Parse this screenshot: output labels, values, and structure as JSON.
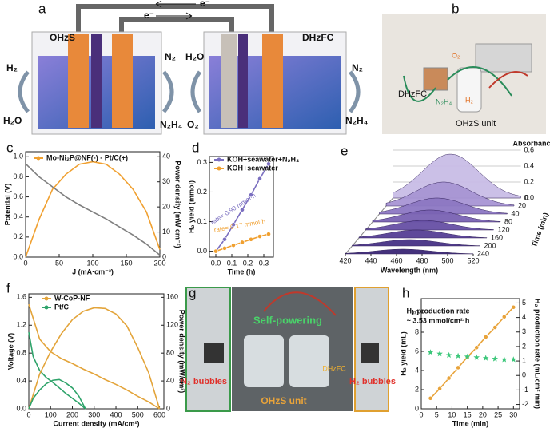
{
  "figure": {
    "panel_labels": [
      "a",
      "b",
      "c",
      "d",
      "e",
      "f",
      "g",
      "h"
    ],
    "a": {
      "left_cell": "OHzS",
      "right_cell": "DHzFC",
      "electron_top": "e⁻",
      "electron_bottom": "e⁻",
      "left_out": "H₂",
      "left_in": "H₂O",
      "left_gas": "N₂",
      "left_fuel": "N₂H₄",
      "right_water": "H₂O",
      "right_o2": "O₂",
      "right_gas": "N₂",
      "right_fuel": "N₂H₄"
    },
    "b": {
      "fuel_cell": "DHzFC",
      "o2": "O₂",
      "n2h4": "N₂H₄",
      "h2": "H₂",
      "unit": "OHzS unit"
    },
    "g": {
      "caption": "Self-powering",
      "n2": "N₂ bubbles",
      "h2": "H₂ bubbles",
      "unit": "OHzS unit",
      "fuel_cell": "DHzFC"
    }
  },
  "chart_data": [
    {
      "type": "line",
      "xlabel": "J (mA·cm⁻²)",
      "ylabel": "Potential (V)",
      "y2label": "Power density (mW cm⁻²)",
      "x": [
        0,
        20,
        40,
        60,
        80,
        100,
        120,
        140,
        160,
        180,
        200
      ],
      "xlim": [
        0,
        200
      ],
      "xticks": [
        0,
        50,
        100,
        150,
        200
      ],
      "ylim": [
        0,
        1.05
      ],
      "yticks": [
        {
          "value": 0,
          "label": "0.0"
        },
        0.2,
        0.4,
        0.6,
        0.8,
        {
          "value": 1,
          "label": "1.0"
        }
      ],
      "y2lim": [
        0,
        42
      ],
      "y2ticks": [
        0,
        10,
        20,
        30,
        40
      ],
      "series": [
        {
          "color": "#7f7f7f",
          "line": true,
          "marker": "none",
          "values": [
            0.93,
            0.8,
            0.7,
            0.6,
            0.52,
            0.45,
            0.38,
            0.3,
            0.22,
            0.13,
            0.02
          ]
        },
        {
          "name": "Mo-Ni₂P@NF(-) - Pt/C(+)",
          "color": "#f0a030",
          "axis": "y2",
          "line": true,
          "marker": "none",
          "values": [
            0,
            15,
            27,
            33,
            37,
            38,
            37,
            33,
            27,
            18,
            3
          ]
        }
      ]
    },
    {
      "type": "line",
      "xlabel": "Time (h)",
      "ylabel": "H₂ yield (mmol)",
      "x": [
        0,
        0.055,
        0.11,
        0.165,
        0.22,
        0.275,
        0.33
      ],
      "xlim": [
        -0.04,
        0.36
      ],
      "xticks": [
        {
          "value": 0,
          "label": "0.0"
        },
        0.1,
        0.2,
        0.3
      ],
      "ylim": [
        -0.02,
        0.32
      ],
      "yticks": [
        {
          "value": 0,
          "label": "0.0"
        },
        0.1,
        0.2,
        0.3
      ],
      "annotations": [
        "rate= 0.90 mmol·h",
        "rate= 0.17 mmol·h"
      ],
      "series": [
        {
          "name": "KOH+seawater+N₂H₄",
          "color": "#7b6fc0",
          "line": true,
          "marker": "circle",
          "values": [
            0,
            0.04,
            0.09,
            0.14,
            0.19,
            0.245,
            0.295
          ]
        },
        {
          "name": "KOH+seawater",
          "color": "#f0a030",
          "line": true,
          "marker": "circle",
          "values": [
            0,
            0.01,
            0.02,
            0.03,
            0.04,
            0.05,
            0.058
          ]
        }
      ]
    },
    {
      "type": "waterfall",
      "xlabel": "Wavelength (nm)",
      "zlabel": "Time (min)",
      "ylabel": "Absorbance",
      "xlim": [
        420,
        520
      ],
      "xticks": [
        420,
        440,
        460,
        480,
        500,
        520
      ],
      "ylim": [
        0,
        0.6
      ],
      "yticks": [
        {
          "value": 0,
          "label": "0.0"
        },
        0.2,
        0.4,
        0.6
      ],
      "peak_wavelength": 465,
      "z": [
        0,
        20,
        40,
        80,
        120,
        160,
        200,
        240
      ],
      "values": [
        0.55,
        0.3,
        0.2,
        0.15,
        0.12,
        0.1,
        0.08,
        0.06
      ],
      "colors": [
        "#c9bde6",
        "#a895d4",
        "#8d78c3",
        "#7a63b4",
        "#6750a5",
        "#563f95",
        "#473285",
        "#3a2775"
      ]
    },
    {
      "type": "line",
      "xlabel": "Current density (mA/cm²)",
      "ylabel": "Voltage (V)",
      "y2label": "Power density (mW/cm²)",
      "xlim": [
        0,
        620
      ],
      "xticks": [
        0,
        100,
        200,
        300,
        400,
        500,
        600
      ],
      "ylim": [
        0,
        1.65
      ],
      "yticks": [
        {
          "value": 0,
          "label": "0.0"
        },
        0.4,
        0.8,
        1.2,
        1.6
      ],
      "y2lim": [
        0,
        165
      ],
      "y2ticks": [
        0,
        40,
        80,
        120,
        160
      ],
      "series": [
        {
          "name": "W-CoP-NF",
          "color": "#e3a43a",
          "line": true,
          "marker": "none",
          "x": [
            0,
            50,
            100,
            150,
            200,
            250,
            300,
            350,
            400,
            450,
            500,
            550,
            600
          ],
          "values": [
            1.5,
            1.0,
            0.82,
            0.72,
            0.65,
            0.57,
            0.5,
            0.42,
            0.35,
            0.27,
            0.18,
            0.1,
            0
          ]
        },
        {
          "name": "Pt/C",
          "color": "#2ea36a",
          "line": true,
          "marker": "none",
          "x": [
            0,
            20,
            50,
            80,
            110,
            140,
            170,
            200,
            230,
            260
          ],
          "values": [
            1.1,
            0.75,
            0.55,
            0.45,
            0.38,
            0.3,
            0.22,
            0.15,
            0.08,
            0
          ]
        },
        {
          "color": "#e3a43a",
          "axis": "y2",
          "line": true,
          "marker": "none",
          "x": [
            0,
            50,
            100,
            150,
            200,
            250,
            300,
            350,
            400,
            450,
            500,
            550,
            600
          ],
          "values": [
            0,
            50,
            82,
            108,
            128,
            140,
            145,
            144,
            136,
            119,
            88,
            52,
            0
          ]
        },
        {
          "color": "#2ea36a",
          "axis": "y2",
          "line": true,
          "marker": "none",
          "x": [
            0,
            20,
            50,
            80,
            110,
            140,
            170,
            200,
            230,
            260
          ],
          "values": [
            0,
            15,
            27,
            36,
            41,
            42,
            37,
            30,
            18,
            0
          ]
        }
      ]
    },
    {
      "type": "line",
      "xlabel": "Time (min)",
      "ylabel": "H₂ yield (mL)",
      "y2label": "H₂ production rate (mL/cm² min)",
      "x": [
        3,
        6,
        9,
        12,
        15,
        18,
        21,
        24,
        27,
        30
      ],
      "xlim": [
        0,
        32
      ],
      "xticks": [
        0,
        5,
        10,
        15,
        20,
        25,
        30
      ],
      "ylim": [
        0,
        11.5
      ],
      "yticks": [
        0,
        2,
        4,
        6,
        8,
        10
      ],
      "y2lim": [
        -2.3,
        5.3
      ],
      "y2ticks": [
        -2,
        -1,
        0,
        1,
        2,
        3,
        4,
        5
      ],
      "annotations": [
        "H₂ production rate",
        "~ 3.53 mmol/cm²·h"
      ],
      "series": [
        {
          "color": "#e8a33a",
          "line": true,
          "marker": "circle",
          "values": [
            1.1,
            2.1,
            3.2,
            4.3,
            5.4,
            6.4,
            7.5,
            8.5,
            9.6,
            10.6
          ]
        },
        {
          "color": "#3cc77a",
          "axis": "y2",
          "line": false,
          "marker": "star",
          "values": [
            1.6,
            1.5,
            1.4,
            1.35,
            1.3,
            1.25,
            1.2,
            1.15,
            1.1,
            1.1
          ]
        }
      ]
    }
  ]
}
